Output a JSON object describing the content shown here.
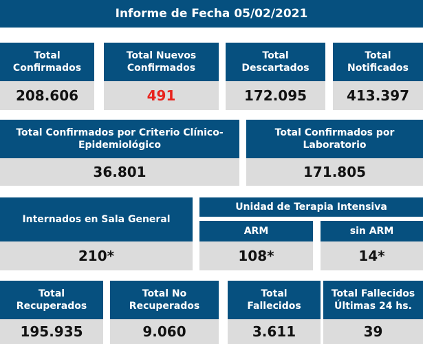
{
  "report": {
    "title": "Informe de Fecha 05/02/2021"
  },
  "colors": {
    "header_bg": "#06507f",
    "value_bg": "#dcdcdc",
    "new_cases": "#e8231d"
  },
  "row1": [
    {
      "label": "Total\nConfirmados",
      "value": "208.606"
    },
    {
      "label": "Total Nuevos\nConfirmados",
      "value": "491"
    },
    {
      "label": "Total\nDescartados",
      "value": "172.095"
    },
    {
      "label": "Total\nNotificados",
      "value": "413.397"
    }
  ],
  "row2": [
    {
      "label": "Total Confirmados por Criterio Clínico-\nEpidemiológico",
      "value": "36.801"
    },
    {
      "label": "Total Confirmados por\nLaboratorio",
      "value": "171.805"
    }
  ],
  "row3": {
    "general": {
      "label": "Internados en Sala General",
      "value": "210*"
    },
    "uti_title": "Unidad de Terapia Intensiva",
    "arm": {
      "label": "ARM",
      "value": "108*"
    },
    "sin_arm": {
      "label": "sin ARM",
      "value": "14*"
    }
  },
  "row4": [
    {
      "label": "Total\nRecuperados",
      "value": "195.935"
    },
    {
      "label": "Total No\nRecuperados",
      "value": "9.060"
    },
    {
      "label": "Total\nFallecidos",
      "value": "3.611"
    },
    {
      "label": "Total Fallecidos\nÚltimas 24 hs.",
      "value": "39"
    }
  ]
}
